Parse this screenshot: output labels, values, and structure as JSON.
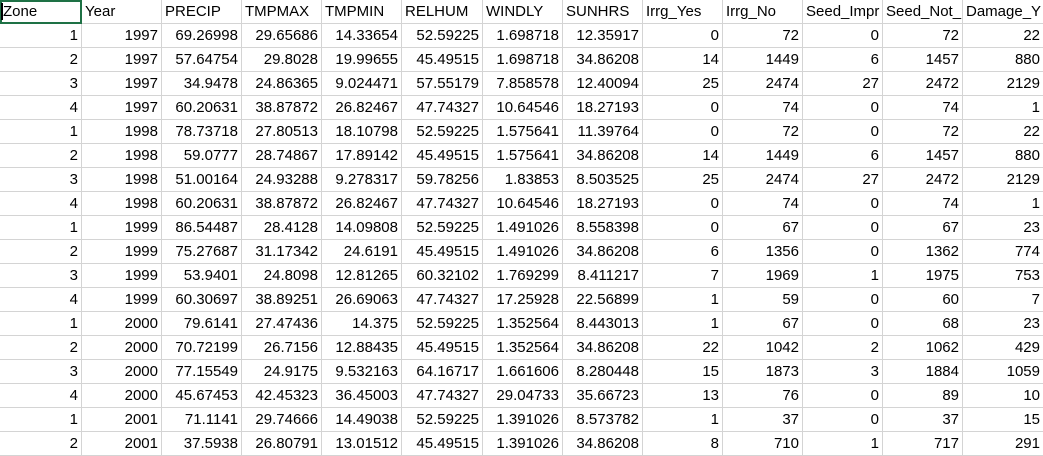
{
  "sheet": {
    "headers": [
      "Zone",
      "Year",
      "PRECIP",
      "TMPMAX",
      "TMPMIN",
      "RELHUM",
      "WINDLY",
      "SUNHRS",
      "Irrg_Yes",
      "Irrg_No",
      "Seed_Impr",
      "Seed_Not_",
      "Damage_Y"
    ],
    "rows": [
      [
        "1",
        "1997",
        "69.26998",
        "29.65686",
        "14.33654",
        "52.59225",
        "1.698718",
        "12.35917",
        "0",
        "72",
        "0",
        "72",
        "22"
      ],
      [
        "2",
        "1997",
        "57.64754",
        "29.8028",
        "19.99655",
        "45.49515",
        "1.698718",
        "34.86208",
        "14",
        "1449",
        "6",
        "1457",
        "880"
      ],
      [
        "3",
        "1997",
        "34.9478",
        "24.86365",
        "9.024471",
        "57.55179",
        "7.858578",
        "12.40094",
        "25",
        "2474",
        "27",
        "2472",
        "2129"
      ],
      [
        "4",
        "1997",
        "60.20631",
        "38.87872",
        "26.82467",
        "47.74327",
        "10.64546",
        "18.27193",
        "0",
        "74",
        "0",
        "74",
        "1"
      ],
      [
        "1",
        "1998",
        "78.73718",
        "27.80513",
        "18.10798",
        "52.59225",
        "1.575641",
        "11.39764",
        "0",
        "72",
        "0",
        "72",
        "22"
      ],
      [
        "2",
        "1998",
        "59.0777",
        "28.74867",
        "17.89142",
        "45.49515",
        "1.575641",
        "34.86208",
        "14",
        "1449",
        "6",
        "1457",
        "880"
      ],
      [
        "3",
        "1998",
        "51.00164",
        "24.93288",
        "9.278317",
        "59.78256",
        "1.83853",
        "8.503525",
        "25",
        "2474",
        "27",
        "2472",
        "2129"
      ],
      [
        "4",
        "1998",
        "60.20631",
        "38.87872",
        "26.82467",
        "47.74327",
        "10.64546",
        "18.27193",
        "0",
        "74",
        "0",
        "74",
        "1"
      ],
      [
        "1",
        "1999",
        "86.54487",
        "28.4128",
        "14.09808",
        "52.59225",
        "1.491026",
        "8.558398",
        "0",
        "67",
        "0",
        "67",
        "23"
      ],
      [
        "2",
        "1999",
        "75.27687",
        "31.17342",
        "24.6191",
        "45.49515",
        "1.491026",
        "34.86208",
        "6",
        "1356",
        "0",
        "1362",
        "774"
      ],
      [
        "3",
        "1999",
        "53.9401",
        "24.8098",
        "12.81265",
        "60.32102",
        "1.769299",
        "8.411217",
        "7",
        "1969",
        "1",
        "1975",
        "753"
      ],
      [
        "4",
        "1999",
        "60.30697",
        "38.89251",
        "26.69063",
        "47.74327",
        "17.25928",
        "22.56899",
        "1",
        "59",
        "0",
        "60",
        "7"
      ],
      [
        "1",
        "2000",
        "79.6141",
        "27.47436",
        "14.375",
        "52.59225",
        "1.352564",
        "8.443013",
        "1",
        "67",
        "0",
        "68",
        "23"
      ],
      [
        "2",
        "2000",
        "70.72199",
        "26.7156",
        "12.88435",
        "45.49515",
        "1.352564",
        "34.86208",
        "22",
        "1042",
        "2",
        "1062",
        "429"
      ],
      [
        "3",
        "2000",
        "77.15549",
        "24.9175",
        "9.532163",
        "64.16717",
        "1.661606",
        "8.280448",
        "15",
        "1873",
        "3",
        "1884",
        "1059"
      ],
      [
        "4",
        "2000",
        "45.67453",
        "42.45323",
        "36.45003",
        "47.74327",
        "29.04733",
        "35.66723",
        "13",
        "76",
        "0",
        "89",
        "10"
      ],
      [
        "1",
        "2001",
        "71.1141",
        "29.74666",
        "14.49038",
        "52.59225",
        "1.391026",
        "8.573782",
        "1",
        "37",
        "0",
        "37",
        "15"
      ],
      [
        "2",
        "2001",
        "37.5938",
        "26.80791",
        "13.01512",
        "45.49515",
        "1.391026",
        "34.86208",
        "8",
        "710",
        "1",
        "717",
        "291"
      ]
    ]
  }
}
